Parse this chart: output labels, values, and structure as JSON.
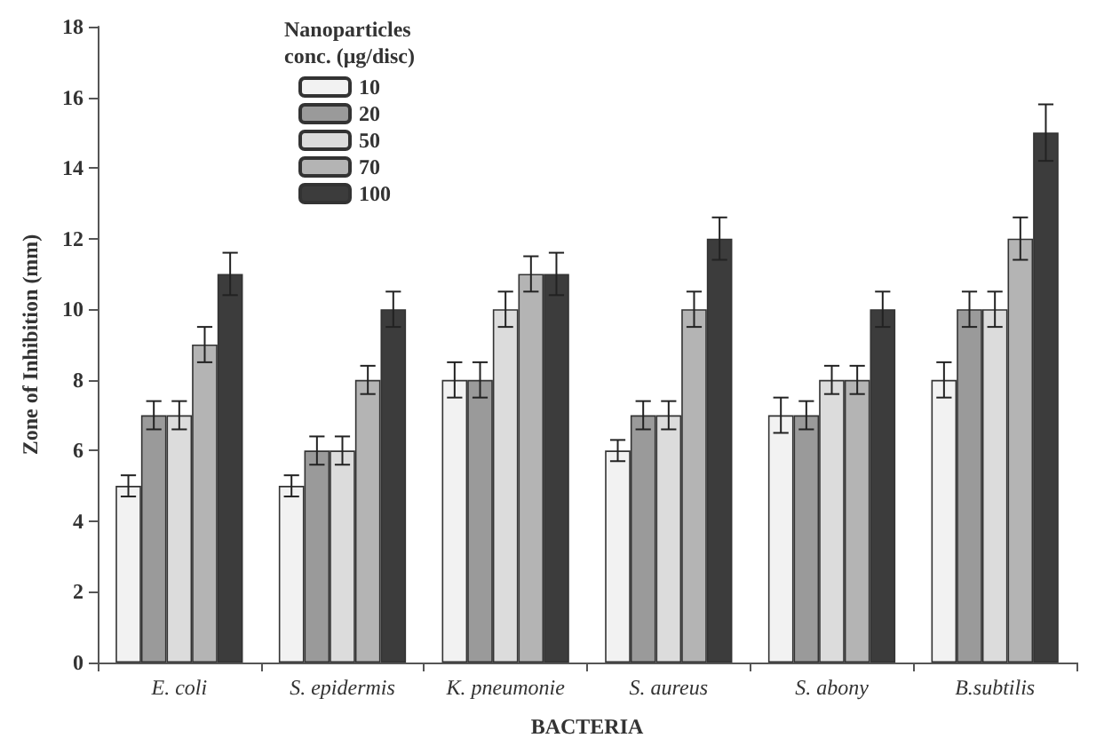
{
  "chart_data": {
    "type": "bar",
    "xlabel": "BACTERIA",
    "ylabel": "Zone of Inhibition (mm)",
    "legend_title": "Nanoparticles\nconc. (μg/disc)",
    "categories": [
      "E. coli",
      "S. epidermis",
      "K. pneumonie",
      "S. aureus",
      "S. abony",
      "B.subtilis"
    ],
    "series": [
      {
        "name": "10",
        "color": "#f2f2f2",
        "values": [
          5,
          5,
          8,
          6,
          7,
          8
        ],
        "errors": [
          0.3,
          0.3,
          0.5,
          0.3,
          0.5,
          0.5
        ]
      },
      {
        "name": "20",
        "color": "#9a9a9a",
        "values": [
          7,
          6,
          8,
          7,
          7,
          10
        ],
        "errors": [
          0.4,
          0.4,
          0.5,
          0.4,
          0.4,
          0.5
        ]
      },
      {
        "name": "50",
        "color": "#dcdcdc",
        "values": [
          7,
          6,
          10,
          7,
          8,
          10
        ],
        "errors": [
          0.4,
          0.4,
          0.5,
          0.4,
          0.4,
          0.5
        ]
      },
      {
        "name": "70",
        "color": "#b4b4b4",
        "values": [
          9,
          8,
          11,
          10,
          8,
          12
        ],
        "errors": [
          0.5,
          0.4,
          0.5,
          0.5,
          0.4,
          0.6
        ]
      },
      {
        "name": "100",
        "color": "#3c3c3c",
        "values": [
          11,
          10,
          11,
          12,
          10,
          15
        ],
        "errors": [
          0.6,
          0.5,
          0.6,
          0.6,
          0.5,
          0.8
        ]
      }
    ],
    "ylim": [
      0,
      18
    ],
    "yticks": [
      0,
      2,
      4,
      6,
      8,
      10,
      12,
      14,
      16,
      18
    ],
    "grid": false,
    "legend": "top left"
  }
}
